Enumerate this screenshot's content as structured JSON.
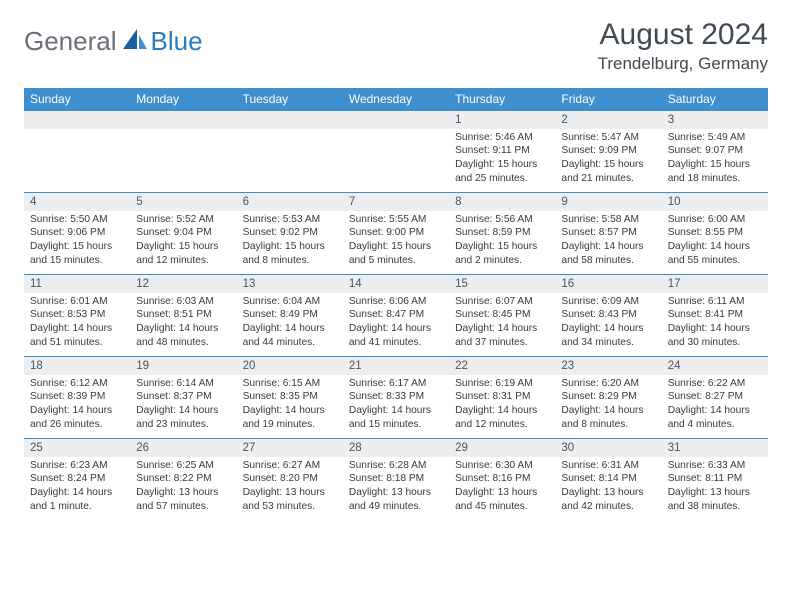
{
  "logo": {
    "general": "General",
    "blue": "Blue"
  },
  "title": "August 2024",
  "location": "Trendelburg, Germany",
  "header_color": "#3f8fcf",
  "daynum_bg": "#eceef0",
  "border_color": "#3f8fcf",
  "text_color": "#3a3a3a",
  "weekdays": [
    "Sunday",
    "Monday",
    "Tuesday",
    "Wednesday",
    "Thursday",
    "Friday",
    "Saturday"
  ],
  "weeks": [
    {
      "nums": [
        "",
        "",
        "",
        "",
        "1",
        "2",
        "3"
      ],
      "cells": [
        {
          "empty": true
        },
        {
          "empty": true
        },
        {
          "empty": true
        },
        {
          "empty": true
        },
        {
          "sunrise": "Sunrise: 5:46 AM",
          "sunset": "Sunset: 9:11 PM",
          "day1": "Daylight: 15 hours",
          "day2": "and 25 minutes."
        },
        {
          "sunrise": "Sunrise: 5:47 AM",
          "sunset": "Sunset: 9:09 PM",
          "day1": "Daylight: 15 hours",
          "day2": "and 21 minutes."
        },
        {
          "sunrise": "Sunrise: 5:49 AM",
          "sunset": "Sunset: 9:07 PM",
          "day1": "Daylight: 15 hours",
          "day2": "and 18 minutes."
        }
      ]
    },
    {
      "nums": [
        "4",
        "5",
        "6",
        "7",
        "8",
        "9",
        "10"
      ],
      "cells": [
        {
          "sunrise": "Sunrise: 5:50 AM",
          "sunset": "Sunset: 9:06 PM",
          "day1": "Daylight: 15 hours",
          "day2": "and 15 minutes."
        },
        {
          "sunrise": "Sunrise: 5:52 AM",
          "sunset": "Sunset: 9:04 PM",
          "day1": "Daylight: 15 hours",
          "day2": "and 12 minutes."
        },
        {
          "sunrise": "Sunrise: 5:53 AM",
          "sunset": "Sunset: 9:02 PM",
          "day1": "Daylight: 15 hours",
          "day2": "and 8 minutes."
        },
        {
          "sunrise": "Sunrise: 5:55 AM",
          "sunset": "Sunset: 9:00 PM",
          "day1": "Daylight: 15 hours",
          "day2": "and 5 minutes."
        },
        {
          "sunrise": "Sunrise: 5:56 AM",
          "sunset": "Sunset: 8:59 PM",
          "day1": "Daylight: 15 hours",
          "day2": "and 2 minutes."
        },
        {
          "sunrise": "Sunrise: 5:58 AM",
          "sunset": "Sunset: 8:57 PM",
          "day1": "Daylight: 14 hours",
          "day2": "and 58 minutes."
        },
        {
          "sunrise": "Sunrise: 6:00 AM",
          "sunset": "Sunset: 8:55 PM",
          "day1": "Daylight: 14 hours",
          "day2": "and 55 minutes."
        }
      ]
    },
    {
      "nums": [
        "11",
        "12",
        "13",
        "14",
        "15",
        "16",
        "17"
      ],
      "cells": [
        {
          "sunrise": "Sunrise: 6:01 AM",
          "sunset": "Sunset: 8:53 PM",
          "day1": "Daylight: 14 hours",
          "day2": "and 51 minutes."
        },
        {
          "sunrise": "Sunrise: 6:03 AM",
          "sunset": "Sunset: 8:51 PM",
          "day1": "Daylight: 14 hours",
          "day2": "and 48 minutes."
        },
        {
          "sunrise": "Sunrise: 6:04 AM",
          "sunset": "Sunset: 8:49 PM",
          "day1": "Daylight: 14 hours",
          "day2": "and 44 minutes."
        },
        {
          "sunrise": "Sunrise: 6:06 AM",
          "sunset": "Sunset: 8:47 PM",
          "day1": "Daylight: 14 hours",
          "day2": "and 41 minutes."
        },
        {
          "sunrise": "Sunrise: 6:07 AM",
          "sunset": "Sunset: 8:45 PM",
          "day1": "Daylight: 14 hours",
          "day2": "and 37 minutes."
        },
        {
          "sunrise": "Sunrise: 6:09 AM",
          "sunset": "Sunset: 8:43 PM",
          "day1": "Daylight: 14 hours",
          "day2": "and 34 minutes."
        },
        {
          "sunrise": "Sunrise: 6:11 AM",
          "sunset": "Sunset: 8:41 PM",
          "day1": "Daylight: 14 hours",
          "day2": "and 30 minutes."
        }
      ]
    },
    {
      "nums": [
        "18",
        "19",
        "20",
        "21",
        "22",
        "23",
        "24"
      ],
      "cells": [
        {
          "sunrise": "Sunrise: 6:12 AM",
          "sunset": "Sunset: 8:39 PM",
          "day1": "Daylight: 14 hours",
          "day2": "and 26 minutes."
        },
        {
          "sunrise": "Sunrise: 6:14 AM",
          "sunset": "Sunset: 8:37 PM",
          "day1": "Daylight: 14 hours",
          "day2": "and 23 minutes."
        },
        {
          "sunrise": "Sunrise: 6:15 AM",
          "sunset": "Sunset: 8:35 PM",
          "day1": "Daylight: 14 hours",
          "day2": "and 19 minutes."
        },
        {
          "sunrise": "Sunrise: 6:17 AM",
          "sunset": "Sunset: 8:33 PM",
          "day1": "Daylight: 14 hours",
          "day2": "and 15 minutes."
        },
        {
          "sunrise": "Sunrise: 6:19 AM",
          "sunset": "Sunset: 8:31 PM",
          "day1": "Daylight: 14 hours",
          "day2": "and 12 minutes."
        },
        {
          "sunrise": "Sunrise: 6:20 AM",
          "sunset": "Sunset: 8:29 PM",
          "day1": "Daylight: 14 hours",
          "day2": "and 8 minutes."
        },
        {
          "sunrise": "Sunrise: 6:22 AM",
          "sunset": "Sunset: 8:27 PM",
          "day1": "Daylight: 14 hours",
          "day2": "and 4 minutes."
        }
      ]
    },
    {
      "nums": [
        "25",
        "26",
        "27",
        "28",
        "29",
        "30",
        "31"
      ],
      "cells": [
        {
          "sunrise": "Sunrise: 6:23 AM",
          "sunset": "Sunset: 8:24 PM",
          "day1": "Daylight: 14 hours",
          "day2": "and 1 minute."
        },
        {
          "sunrise": "Sunrise: 6:25 AM",
          "sunset": "Sunset: 8:22 PM",
          "day1": "Daylight: 13 hours",
          "day2": "and 57 minutes."
        },
        {
          "sunrise": "Sunrise: 6:27 AM",
          "sunset": "Sunset: 8:20 PM",
          "day1": "Daylight: 13 hours",
          "day2": "and 53 minutes."
        },
        {
          "sunrise": "Sunrise: 6:28 AM",
          "sunset": "Sunset: 8:18 PM",
          "day1": "Daylight: 13 hours",
          "day2": "and 49 minutes."
        },
        {
          "sunrise": "Sunrise: 6:30 AM",
          "sunset": "Sunset: 8:16 PM",
          "day1": "Daylight: 13 hours",
          "day2": "and 45 minutes."
        },
        {
          "sunrise": "Sunrise: 6:31 AM",
          "sunset": "Sunset: 8:14 PM",
          "day1": "Daylight: 13 hours",
          "day2": "and 42 minutes."
        },
        {
          "sunrise": "Sunrise: 6:33 AM",
          "sunset": "Sunset: 8:11 PM",
          "day1": "Daylight: 13 hours",
          "day2": "and 38 minutes."
        }
      ]
    }
  ]
}
